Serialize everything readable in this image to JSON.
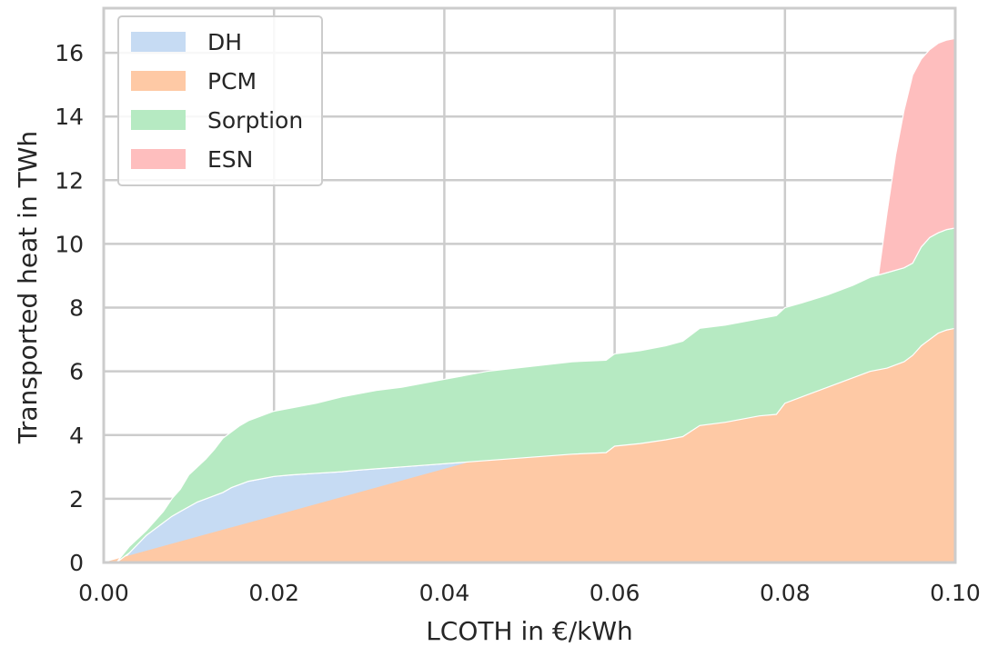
{
  "chart_data": {
    "type": "area",
    "stacked": true,
    "xlabel": "LCOTH in €/kWh",
    "ylabel": "Transported heat in TWh",
    "xlim": [
      0.0,
      0.1
    ],
    "ylim": [
      0,
      17.4
    ],
    "xticks": [
      "0.00",
      "0.02",
      "0.04",
      "0.06",
      "0.08",
      "0.10"
    ],
    "yticks": [
      "0",
      "2",
      "4",
      "6",
      "8",
      "10",
      "12",
      "14",
      "16"
    ],
    "grid": true,
    "legend_position": "top-left",
    "series": [
      {
        "name": "DH",
        "color": "#c6dbf3",
        "points": [
          [
            0.002,
            0.0
          ],
          [
            0.003,
            0.3
          ],
          [
            0.004,
            0.6
          ],
          [
            0.005,
            0.85
          ],
          [
            0.006,
            1.05
          ],
          [
            0.007,
            1.25
          ],
          [
            0.008,
            1.45
          ],
          [
            0.009,
            1.6
          ],
          [
            0.01,
            1.75
          ],
          [
            0.011,
            1.9
          ],
          [
            0.012,
            2.0
          ],
          [
            0.013,
            2.1
          ],
          [
            0.014,
            2.2
          ],
          [
            0.015,
            2.35
          ],
          [
            0.016,
            2.45
          ],
          [
            0.017,
            2.55
          ],
          [
            0.018,
            2.6
          ],
          [
            0.019,
            2.65
          ],
          [
            0.02,
            2.7
          ],
          [
            0.022,
            2.75
          ],
          [
            0.025,
            2.8
          ],
          [
            0.028,
            2.85
          ],
          [
            0.03,
            2.9
          ],
          [
            0.035,
            3.0
          ],
          [
            0.04,
            3.1
          ],
          [
            0.045,
            3.2
          ],
          [
            0.05,
            3.3
          ],
          [
            0.055,
            3.4
          ],
          [
            0.059,
            3.45
          ],
          [
            0.06,
            3.65
          ],
          [
            0.062,
            3.7
          ],
          [
            0.065,
            3.8
          ],
          [
            0.068,
            3.95
          ],
          [
            0.07,
            4.3
          ],
          [
            0.073,
            4.4
          ],
          [
            0.075,
            4.5
          ],
          [
            0.077,
            4.6
          ],
          [
            0.079,
            4.65
          ],
          [
            0.08,
            5.0
          ],
          [
            0.082,
            5.2
          ],
          [
            0.085,
            5.5
          ],
          [
            0.088,
            5.8
          ],
          [
            0.09,
            6.0
          ],
          [
            0.092,
            6.1
          ],
          [
            0.094,
            6.3
          ],
          [
            0.095,
            6.5
          ],
          [
            0.096,
            6.8
          ],
          [
            0.097,
            7.0
          ],
          [
            0.098,
            7.2
          ],
          [
            0.099,
            7.3
          ],
          [
            0.1,
            7.35
          ]
        ]
      },
      {
        "name": "PCM",
        "color": "#fec9a5",
        "points": [
          [
            0.0,
            0.0
          ],
          [
            0.1,
            0.0
          ]
        ]
      },
      {
        "name": "Sorption",
        "color": "#b6eac2",
        "points": [
          [
            0.0015,
            0.0
          ],
          [
            0.003,
            0.5
          ],
          [
            0.005,
            1.0
          ],
          [
            0.007,
            1.6
          ],
          [
            0.008,
            2.0
          ],
          [
            0.009,
            2.3
          ],
          [
            0.01,
            2.75
          ],
          [
            0.011,
            3.0
          ],
          [
            0.012,
            3.25
          ],
          [
            0.013,
            3.55
          ],
          [
            0.014,
            3.9
          ],
          [
            0.015,
            4.1
          ],
          [
            0.016,
            4.3
          ],
          [
            0.017,
            4.45
          ],
          [
            0.018,
            4.55
          ],
          [
            0.019,
            4.65
          ],
          [
            0.02,
            4.75
          ],
          [
            0.022,
            4.85
          ],
          [
            0.025,
            5.0
          ],
          [
            0.028,
            5.2
          ],
          [
            0.03,
            5.3
          ],
          [
            0.032,
            5.4
          ],
          [
            0.035,
            5.5
          ],
          [
            0.04,
            5.75
          ],
          [
            0.043,
            5.9
          ],
          [
            0.045,
            6.0
          ],
          [
            0.05,
            6.15
          ],
          [
            0.055,
            6.3
          ],
          [
            0.059,
            6.35
          ],
          [
            0.06,
            6.55
          ],
          [
            0.063,
            6.65
          ],
          [
            0.066,
            6.8
          ],
          [
            0.068,
            6.95
          ],
          [
            0.07,
            7.35
          ],
          [
            0.073,
            7.45
          ],
          [
            0.075,
            7.55
          ],
          [
            0.077,
            7.65
          ],
          [
            0.079,
            7.75
          ],
          [
            0.08,
            8.0
          ],
          [
            0.082,
            8.15
          ],
          [
            0.085,
            8.4
          ],
          [
            0.088,
            8.7
          ],
          [
            0.09,
            8.95
          ],
          [
            0.092,
            9.1
          ],
          [
            0.094,
            9.25
          ],
          [
            0.095,
            9.4
          ],
          [
            0.096,
            9.9
          ],
          [
            0.097,
            10.2
          ],
          [
            0.098,
            10.35
          ],
          [
            0.099,
            10.45
          ],
          [
            0.1,
            10.5
          ]
        ]
      },
      {
        "name": "ESN",
        "color": "#febebe",
        "points": [
          [
            0.091,
            9.05
          ],
          [
            0.092,
            11.0
          ],
          [
            0.093,
            12.8
          ],
          [
            0.094,
            14.2
          ],
          [
            0.095,
            15.3
          ],
          [
            0.096,
            15.8
          ],
          [
            0.097,
            16.1
          ],
          [
            0.098,
            16.3
          ],
          [
            0.099,
            16.4
          ],
          [
            0.1,
            16.45
          ]
        ]
      }
    ]
  }
}
